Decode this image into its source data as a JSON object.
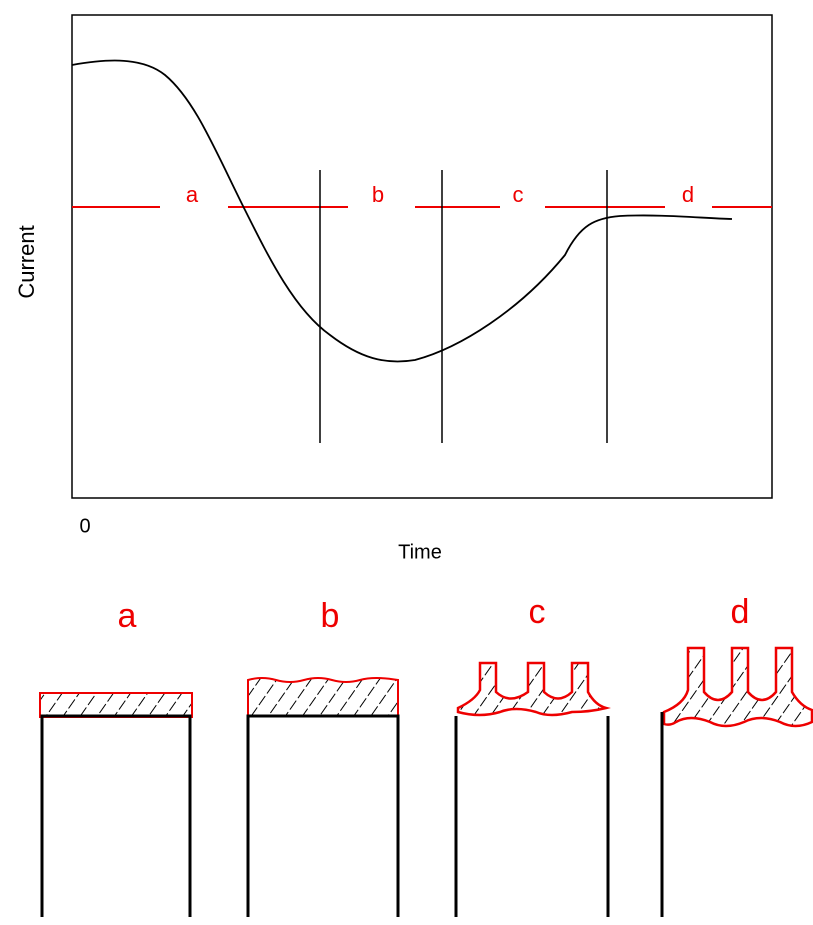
{
  "plot": {
    "y_label": "Current",
    "x_label": "Time",
    "origin": "0",
    "stage_labels": [
      "a",
      "b",
      "c",
      "d"
    ]
  },
  "stages": {
    "labels": [
      "a",
      "b",
      "c",
      "d"
    ]
  }
}
